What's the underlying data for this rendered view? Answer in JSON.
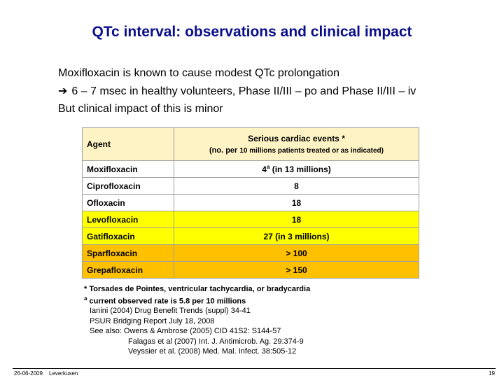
{
  "title": "QTc interval: observations and clinical impact",
  "intro": {
    "line1": "Moxifloxacin is known to cause modest QTc prolongation",
    "line2": "6 – 7 msec in healthy volunteers, Phase II/III – po and Phase II/III – iv",
    "line3": "But clinical impact of this is minor"
  },
  "table": {
    "header": {
      "agent": "Agent",
      "events_line1": "Serious cardiac events *",
      "events_line2_a": "(no. per ",
      "events_line2_b": "10 millions patients treated or as indicated)"
    },
    "rows": [
      {
        "agent": "Moxifloxacin",
        "value": "4",
        "sup": "a",
        "value_suffix": " (in 13 millions)",
        "bg": "#ffffff"
      },
      {
        "agent": "Ciprofloxacin",
        "value": "8",
        "sup": "",
        "value_suffix": "",
        "bg": "#ffffff"
      },
      {
        "agent": "Ofloxacin",
        "value": "18",
        "sup": "",
        "value_suffix": "",
        "bg": "#ffffff"
      },
      {
        "agent": "Levofloxacin",
        "value": "18",
        "sup": "",
        "value_suffix": "",
        "bg": "#ffff00"
      },
      {
        "agent": "Gatifloxacin",
        "value": "27 (in 3 millions)",
        "sup": "",
        "value_suffix": "",
        "bg": "#ffff00"
      },
      {
        "agent": "Sparfloxacin",
        "value": "> 100",
        "sup": "",
        "value_suffix": "",
        "bg": "#ffc000"
      },
      {
        "agent": "Grepafloxacin",
        "value": "> 150",
        "sup": "",
        "value_suffix": "",
        "bg": "#ffc000"
      }
    ]
  },
  "notes": {
    "note1": "* Torsades de Pointes, ventricular tachycardia, or bradycardia",
    "note2_sup": "a",
    "note2": " current observed rate is 5.8 per 10 millions"
  },
  "refs": [
    "Ianini (2004) Drug Benefit Trends (suppl) 34-41",
    "PSUR Bridging Report July 18, 2008",
    "See also: Owens & Ambrose (2005) CID 41S2: S144-57",
    "Falagas et al (2007) Int. J. Antimicrob. Ag. 29:374-9",
    "Veyssier et al. (2008) Med. Mal. Infect. 38:505-12"
  ],
  "footer": {
    "date": "26-06-2009",
    "location": "Leverkusen",
    "page": "19"
  }
}
